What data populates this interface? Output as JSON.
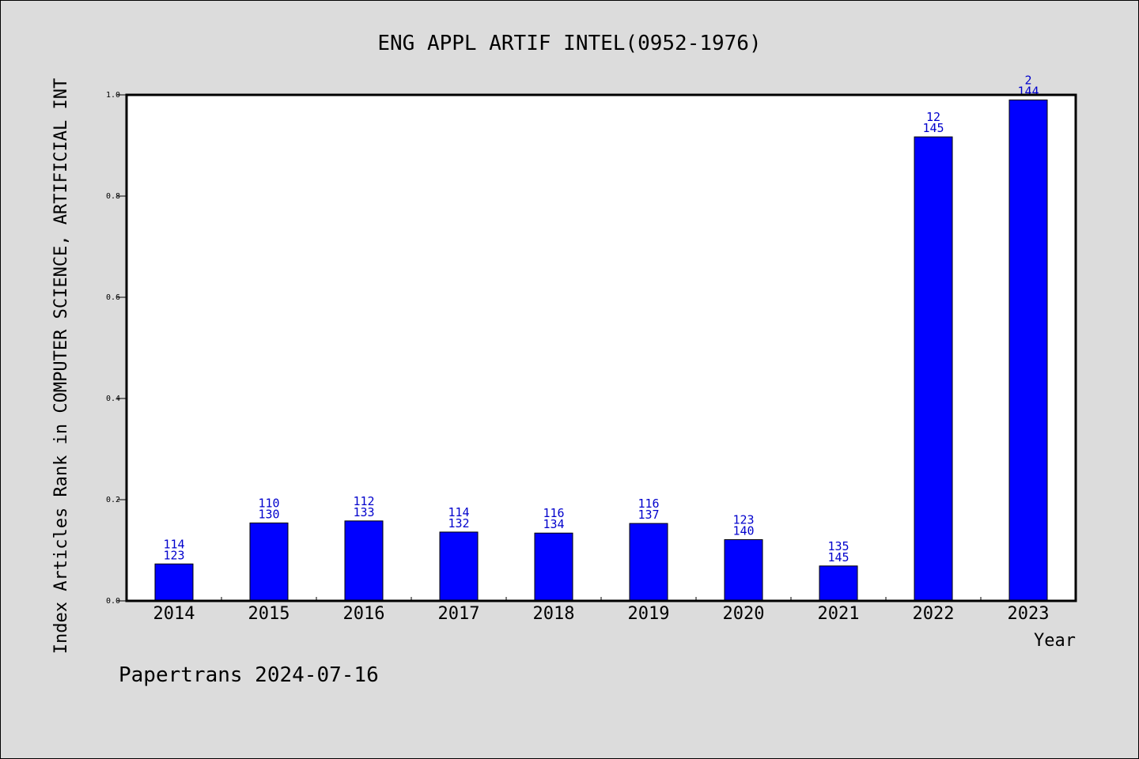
{
  "title": "ENG APPL ARTIF INTEL(0952-1976)",
  "ylabel": "Index Articles Rank in COMPUTER SCIENCE, ARTIFICIAL INT",
  "xlabel": "Year",
  "footer": "Papertrans 2024-07-16",
  "colors": {
    "background": "#dcdcdc",
    "plot": "#ffffff",
    "bar": "#0000ff",
    "label": "#0000cc"
  },
  "chart_data": {
    "type": "bar",
    "categories": [
      "2014",
      "2015",
      "2016",
      "2017",
      "2018",
      "2019",
      "2020",
      "2021",
      "2022",
      "2023"
    ],
    "values": [
      0.073,
      0.154,
      0.158,
      0.136,
      0.134,
      0.153,
      0.121,
      0.069,
      0.917,
      0.99
    ],
    "data_labels_top": [
      "114",
      "110",
      "112",
      "114",
      "116",
      "116",
      "123",
      "135",
      "12",
      "2"
    ],
    "data_labels_bottom": [
      "123",
      "130",
      "133",
      "132",
      "134",
      "137",
      "140",
      "145",
      "145",
      "144"
    ],
    "ylim": [
      0,
      1.0
    ],
    "yticks": [
      "0.0",
      "0.2",
      "0.4",
      "0.6",
      "0.8",
      "1.0"
    ],
    "title": "ENG APPL ARTIF INTEL(0952-1976)",
    "xlabel": "Year",
    "ylabel": "Index Articles Rank in COMPUTER SCIENCE, ARTIFICIAL INT",
    "grid": false,
    "legend": "none"
  }
}
